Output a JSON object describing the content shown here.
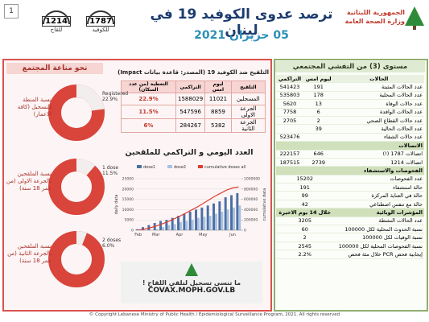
{
  "header": {
    "page": "1",
    "hotline_vaccine": {
      "number": "1214",
      "label": "للقاح"
    },
    "hotline_covid": {
      "number": "1787",
      "label": "للكوفيد"
    },
    "title": "ترصد عدوى الكوفيد 19 في لبنان",
    "date": "05 حزيران 2021",
    "ministry": [
      "الجمهورية اللبنانية",
      "وزارة الصحة العامة"
    ]
  },
  "immunity": {
    "title": "نحو مناعة المجتمع"
  },
  "vaccination_table": {
    "title": "التلقيح ضد الكوفيد 19 (المصدر: قاعدة بيانات Impact)",
    "columns": [
      "التلقيح",
      "ليوم امس",
      "التراكمي",
      "التغطية (من عدد السكان)"
    ],
    "rows": [
      [
        "المسجلين",
        11021,
        1588029,
        "22.9%"
      ],
      [
        "الجرعة الاولى",
        8859,
        547596,
        "11.5%"
      ],
      [
        "الجرعة الثانية",
        5382,
        284267,
        "6%"
      ]
    ]
  },
  "banner": {
    "text": "ما تنسى تسجيل لتلقي اللقاح !",
    "url": "COVAX.MOPH.GOV.LB"
  },
  "outbreak": {
    "title": "مستوى (3) من التفشي المجتمعي",
    "columns": [
      "الحالات",
      "ليوم امس",
      "التراكمي"
    ],
    "rows": [
      [
        "عدد الحالات المثبتة",
        191,
        541423
      ],
      [
        "عدد الحالات المحلية",
        178,
        535803
      ],
      [
        "عدد حالات الوفاة",
        13,
        5620
      ],
      [
        "عدد الحالات الوافدة",
        6,
        7758
      ],
      [
        "عدد حالات القطاع الصحي",
        2,
        2705
      ],
      [
        "عدد الحالات الحالية",
        39,
        null
      ],
      [
        "عدد حالات الشفاء",
        null,
        523476
      ]
    ],
    "calls": {
      "title": "الاتصالات",
      "rows": [
        [
          "اتصالات 1787 (!)",
          646,
          222157
        ],
        [
          "اتصالات 1214",
          2739,
          187515
        ]
      ]
    },
    "tests": {
      "title": "الفحوصات والاستشفاء",
      "rows": [
        [
          "عدد الفحوصات",
          15202
        ],
        [
          "حالة استشفاء",
          191
        ],
        [
          "حالة في العناية المركزة",
          99
        ],
        [
          "حالة مع تنفس اصطناعي",
          42
        ]
      ]
    },
    "indicators": {
      "title": "المؤشرات الوبائية",
      "period": "خلال 14 يوم الاخيرة",
      "rows": [
        [
          "عدد الحالات النشطة",
          3205
        ],
        [
          "نسبة الحدوث المحلية لكل 100000",
          60
        ],
        [
          "نسبة الوفيات لكل 100000",
          2
        ],
        [
          "نسبة الفحوصات المحلية لكل 100000",
          2545
        ],
        [
          "إيجابية فحص PCR خلال مئة فحص",
          "2.2%"
        ]
      ]
    }
  },
  "footer": "© Copyright Lebanese Ministry of Public Health / Epidemiological Surveillance Program, 2021. All rights reserved",
  "chart_data": [
    {
      "type": "donut",
      "title": "نسبة المنطة للتسجيل (كافة الاعمار)",
      "categories": [
        "Registered"
      ],
      "values": [
        22.9
      ],
      "value_labels": [
        "22.9%"
      ],
      "color": "#f3eeee",
      "ring_color": "#d9443b"
    },
    {
      "type": "donut",
      "title": "نسبة الملقحين بالجرعة الاولى (من عمر 18 سنة)",
      "categories": [
        "1 dose"
      ],
      "values": [
        11.5
      ],
      "value_labels": [
        "11.5%"
      ],
      "color": "#f3eeee",
      "ring_color": "#d9443b"
    },
    {
      "type": "donut",
      "title": "نسبة الملقحين بالجرعة الثانية (من عمر 18 سنة)",
      "categories": [
        "2 doses"
      ],
      "values": [
        6.0
      ],
      "value_labels": [
        "6.0%"
      ],
      "color": "#f3eeee",
      "ring_color": "#d9443b"
    },
    {
      "type": "bar_line",
      "title": "العدد اليومي و التراكمي للملقحين",
      "categories": [
        "Feb",
        null,
        null,
        "Mar",
        null,
        null,
        null,
        "Apr",
        null,
        null,
        null,
        "May",
        null,
        null,
        null,
        null,
        "Jun",
        null
      ],
      "series": [
        {
          "name": "dose1",
          "color": "#4a6fa5",
          "values": [
            500,
            1500,
            2500,
            3500,
            4500,
            5000,
            6000,
            7000,
            8000,
            9000,
            10000,
            11000,
            12000,
            13000,
            14000,
            16000,
            17000,
            18000
          ]
        },
        {
          "name": "dose2",
          "color": "#a9c1e0",
          "values": [
            0,
            0,
            0,
            500,
            1500,
            2500,
            3000,
            4000,
            4500,
            5000,
            6000,
            6500,
            7000,
            8000,
            9000,
            10000,
            11000,
            12000
          ]
        },
        {
          "name": "cumulative doses all",
          "color": "#e03c31",
          "axis": "y2",
          "values": [
            5000,
            20000,
            45000,
            80000,
            120000,
            165000,
            215000,
            270000,
            330000,
            390000,
            450000,
            520000,
            590000,
            660000,
            720000,
            780000,
            820000,
            840000
          ]
        }
      ],
      "ylim": [
        0,
        25000
      ],
      "yticks": [
        0,
        5000,
        10000,
        15000,
        20000,
        25000
      ],
      "y2lim": [
        0,
        1000000
      ],
      "y2ticks": [
        0,
        200000,
        400000,
        600000,
        800000,
        1000000
      ],
      "ylabel": "daily data",
      "y2label": "cumulative data",
      "grid": true
    }
  ]
}
